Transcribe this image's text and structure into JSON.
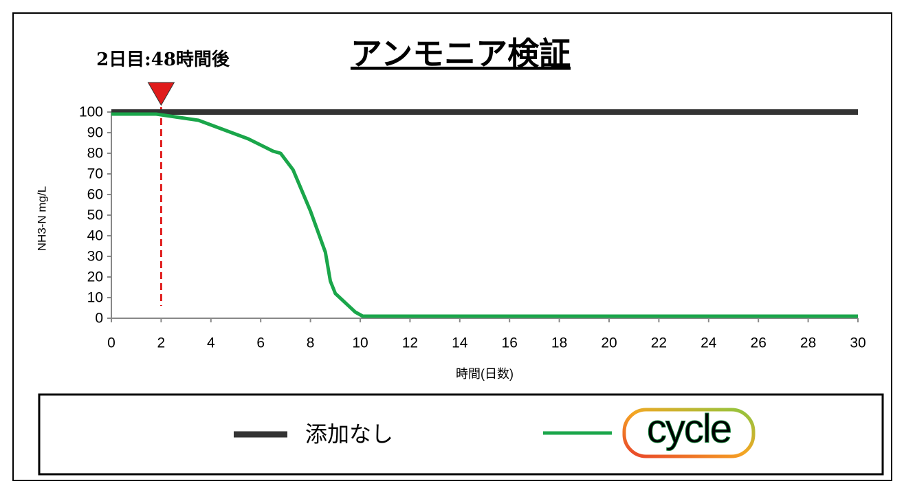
{
  "chart_data": {
    "type": "line",
    "title": "アンモニア検証",
    "annotation": {
      "text": "2日目:48時間後",
      "x": 2,
      "color": "#e01b1b"
    },
    "x_label": "時間(日数)",
    "y_label": "NH3-N mg/L",
    "x": [
      0,
      1.8,
      3.5,
      5.5,
      6.5,
      6.8,
      7.3,
      8,
      8.6,
      8.8,
      9,
      9.8,
      10.1,
      30
    ],
    "series": [
      {
        "name": "添加なし",
        "color": "#333333",
        "values": [
          100,
          100,
          100,
          100,
          100,
          100,
          100,
          100,
          100,
          100,
          100,
          100,
          100,
          100
        ]
      },
      {
        "name": "cycle",
        "color": "#1aa64a",
        "values": [
          99,
          99,
          96,
          87,
          81,
          80,
          72,
          52,
          32,
          18,
          12,
          3,
          1,
          1
        ]
      }
    ],
    "xlim": [
      0,
      30
    ],
    "xticks": [
      0,
      2,
      4,
      6,
      8,
      10,
      12,
      14,
      16,
      18,
      20,
      22,
      24,
      26,
      28,
      30
    ],
    "ylim": [
      0,
      100
    ],
    "yticks": [
      0,
      10,
      20,
      30,
      40,
      50,
      60,
      70,
      80,
      90,
      100
    ]
  }
}
